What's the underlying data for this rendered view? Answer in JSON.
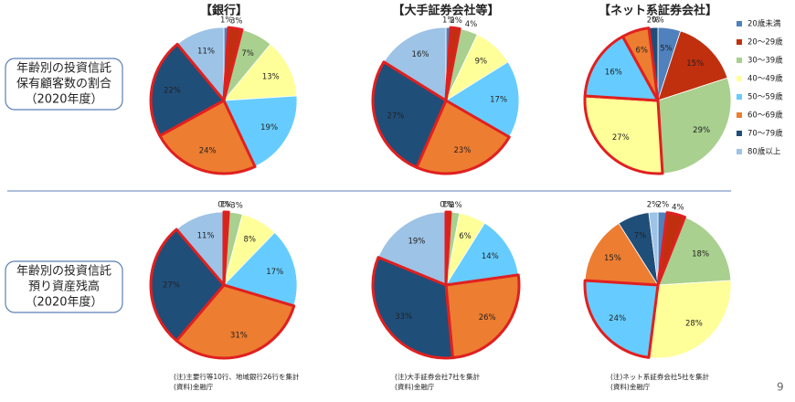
{
  "row_labels": [
    [
      "年齢別の投資信託",
      "保有顧客数の割合",
      "（2020年度）"
    ],
    [
      "年齢別の投資信託",
      "預り資産残高",
      "（2020年度）"
    ]
  ],
  "chart_data": [
    {
      "type": "pie",
      "title": "【銀行】",
      "categories": [
        "20歳未満",
        "20～29歳",
        "30～39歳",
        "40～49歳",
        "50～59歳",
        "60～69歳",
        "70～79歳",
        "80歳以上"
      ],
      "values": [
        1,
        3,
        7,
        13,
        19,
        24,
        22,
        11
      ],
      "value_labels": [
        "1%",
        "3%",
        "7%",
        "13%",
        "19%",
        "24%",
        "22%",
        "11%"
      ],
      "colors": [
        "#4f81bd",
        "#c0300f",
        "#a9d08e",
        "#ffff99",
        "#66ccff",
        "#ed7d31",
        "#1f4e79",
        "#9dc3e6"
      ],
      "highlight": [
        1,
        5,
        6
      ],
      "highlight_color": "#e02020"
    },
    {
      "type": "pie",
      "title": "【大手証券会社等】",
      "categories": [
        "20歳未満",
        "20～29歳",
        "30～39歳",
        "40～49歳",
        "50～59歳",
        "60～69歳",
        "70～79歳",
        "80歳以上"
      ],
      "values": [
        1,
        2,
        4,
        9,
        17,
        23,
        27,
        16
      ],
      "value_labels": [
        "1%",
        "2%",
        "4%",
        "9%",
        "17%",
        "23%",
        "27%",
        "16%"
      ],
      "colors": [
        "#4f81bd",
        "#c0300f",
        "#a9d08e",
        "#ffff99",
        "#66ccff",
        "#ed7d31",
        "#1f4e79",
        "#9dc3e6"
      ],
      "highlight": [
        1,
        5,
        6
      ],
      "highlight_color": "#e02020"
    },
    {
      "type": "pie",
      "title": "【ネット系証券会社】",
      "categories": [
        "20歳未満",
        "20～29歳",
        "30～39歳",
        "40～49歳",
        "50～59歳",
        "60～69歳",
        "70～79歳",
        "80歳以上"
      ],
      "values": [
        5,
        15,
        29,
        27,
        16,
        6,
        2,
        0
      ],
      "value_labels": [
        "5%",
        "15%",
        "29%",
        "27%",
        "16%",
        "6%",
        "2%",
        "0%"
      ],
      "colors": [
        "#4f81bd",
        "#c0300f",
        "#a9d08e",
        "#ffff99",
        "#66ccff",
        "#ed7d31",
        "#1f4e79",
        "#9dc3e6"
      ],
      "highlight": [
        3,
        4,
        5
      ],
      "highlight_color": "#e02020"
    },
    {
      "type": "pie",
      "categories": [
        "20歳未満",
        "20～29歳",
        "30～39歳",
        "40～49歳",
        "50～59歳",
        "60～69歳",
        "70～79歳",
        "80歳以上"
      ],
      "values": [
        0,
        1,
        3,
        8,
        17,
        31,
        27,
        11
      ],
      "value_labels": [
        "0%",
        "1%",
        "3%",
        "8%",
        "17%",
        "31%",
        "27%",
        "11%"
      ],
      "colors": [
        "#4f81bd",
        "#c0300f",
        "#a9d08e",
        "#ffff99",
        "#66ccff",
        "#ed7d31",
        "#1f4e79",
        "#9dc3e6"
      ],
      "highlight": [
        1,
        5,
        6
      ],
      "highlight_color": "#e02020"
    },
    {
      "type": "pie",
      "categories": [
        "20歳未満",
        "20～29歳",
        "30～39歳",
        "40～49歳",
        "50～59歳",
        "60～69歳",
        "70～79歳",
        "80歳以上"
      ],
      "values": [
        0,
        1,
        2,
        6,
        14,
        26,
        33,
        19
      ],
      "value_labels": [
        "0%",
        "1%",
        "2%",
        "6%",
        "14%",
        "26%",
        "33%",
        "19%"
      ],
      "colors": [
        "#4f81bd",
        "#c0300f",
        "#a9d08e",
        "#ffff99",
        "#66ccff",
        "#ed7d31",
        "#1f4e79",
        "#9dc3e6"
      ],
      "highlight": [
        1,
        5,
        6
      ],
      "highlight_color": "#e02020"
    },
    {
      "type": "pie",
      "categories": [
        "20歳未満",
        "20～29歳",
        "30～39歳",
        "40～49歳",
        "50～59歳",
        "60～69歳",
        "70～79歳",
        "80歳以上"
      ],
      "values": [
        2,
        4,
        18,
        28,
        24,
        15,
        7,
        2
      ],
      "value_labels": [
        "2%",
        "4%",
        "18%",
        "28%",
        "24%",
        "15%",
        "7%",
        "2%"
      ],
      "colors": [
        "#4f81bd",
        "#c0300f",
        "#a9d08e",
        "#ffff99",
        "#66ccff",
        "#ed7d31",
        "#1f4e79",
        "#9dc3e6"
      ],
      "highlight": [
        1,
        4
      ],
      "highlight_color": "#e02020"
    }
  ],
  "notes": [
    [
      "(注)主要行等10行、地域銀行26行を集計",
      "(資料)金融庁"
    ],
    [
      "(注)大手証券会社7社を集計",
      "(資料)金融庁"
    ],
    [
      "(注)ネット系証券会社5社を集計",
      "(資料)金融庁"
    ]
  ],
  "page_number": "9"
}
